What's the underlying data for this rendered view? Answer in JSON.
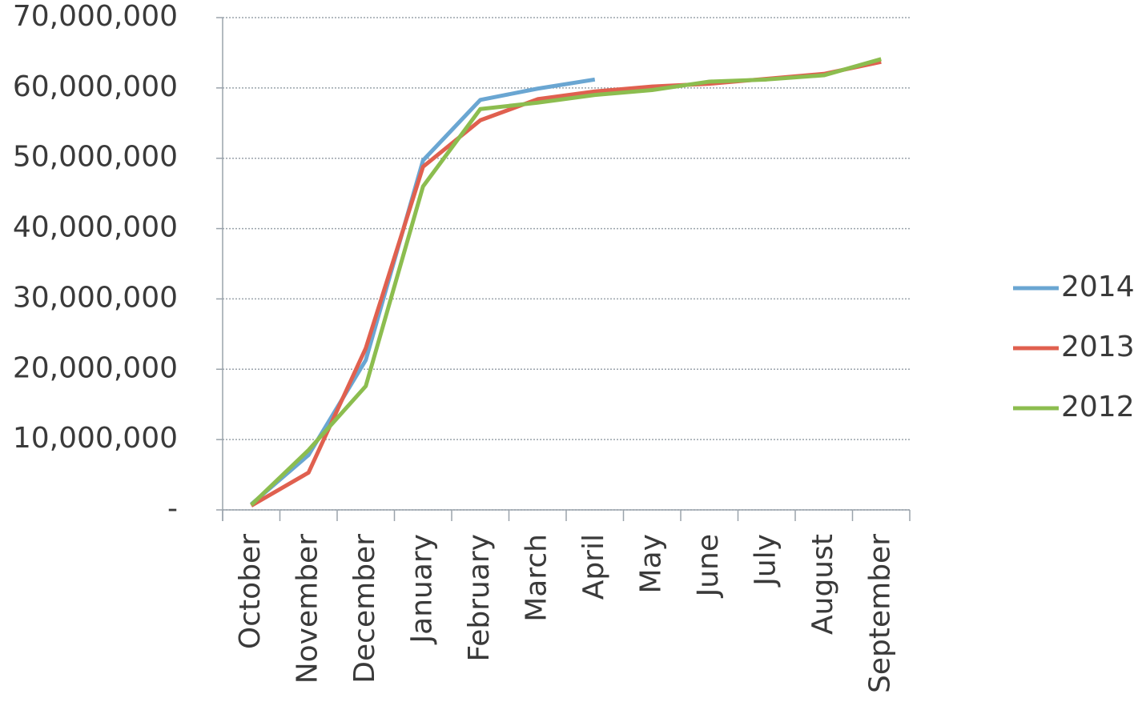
{
  "chart_data": {
    "type": "line",
    "categories": [
      "October",
      "November",
      "December",
      "January",
      "February",
      "March",
      "April",
      "May",
      "June",
      "July",
      "August",
      "September"
    ],
    "series": [
      {
        "name": "2014",
        "color": "#6aa6d2",
        "values": [
          800000,
          7800000,
          21300000,
          49700000,
          58300000,
          59900000,
          61200000,
          null,
          null,
          null,
          null,
          null
        ]
      },
      {
        "name": "2013",
        "color": "#e0604f",
        "values": [
          600000,
          5300000,
          23000000,
          48800000,
          55400000,
          58400000,
          59500000,
          60200000,
          60600000,
          61300000,
          62000000,
          63700000
        ]
      },
      {
        "name": "2012",
        "color": "#8cbd4f",
        "values": [
          700000,
          8500000,
          17600000,
          46000000,
          57000000,
          57900000,
          59000000,
          59700000,
          60900000,
          61200000,
          61800000,
          64100000
        ]
      }
    ],
    "ylim": [
      0,
      70000000
    ],
    "yticks": [
      {
        "value": 0,
        "label": "-"
      },
      {
        "value": 10000000,
        "label": "10,000,000"
      },
      {
        "value": 20000000,
        "label": "20,000,000"
      },
      {
        "value": 30000000,
        "label": "30,000,000"
      },
      {
        "value": 40000000,
        "label": "40,000,000"
      },
      {
        "value": 50000000,
        "label": "50,000,000"
      },
      {
        "value": 60000000,
        "label": "60,000,000"
      },
      {
        "value": 70000000,
        "label": "70,000,000"
      }
    ],
    "grid": true,
    "legend": "right"
  }
}
